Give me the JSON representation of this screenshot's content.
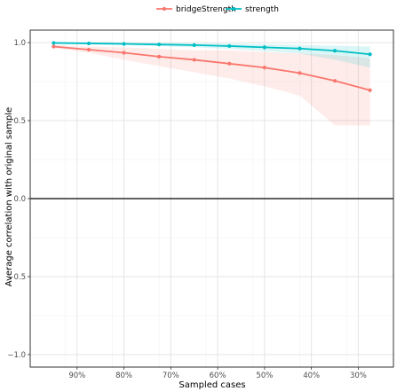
{
  "chart_data": {
    "type": "line",
    "xlabel": "Sampled cases",
    "ylabel": "Average correlation with original sample",
    "x_tick_labels": [
      "90%",
      "80%",
      "70%",
      "60%",
      "50%",
      "40%",
      "30%"
    ],
    "y_tick_labels": [
      "1.0",
      "0.5",
      "0.0",
      "−0.5",
      "−1.0"
    ],
    "ylim": [
      -1.0,
      1.0
    ],
    "grid": true,
    "legend_position": "top",
    "reference_line_y": 0,
    "x": [
      95,
      87.5,
      80,
      72.5,
      65,
      57.5,
      50,
      42.5,
      35,
      27.5
    ],
    "series": [
      {
        "name": "bridgeStrength",
        "color": "#F8766D",
        "values": [
          0.975,
          0.955,
          0.935,
          0.91,
          0.89,
          0.865,
          0.84,
          0.805,
          0.755,
          0.695
        ],
        "band_low": [
          0.965,
          0.935,
          0.89,
          0.85,
          0.81,
          0.77,
          0.72,
          0.66,
          0.47,
          0.47
        ],
        "band_high": [
          0.985,
          0.975,
          0.97,
          0.96,
          0.95,
          0.95,
          0.94,
          0.93,
          0.92,
          0.9
        ]
      },
      {
        "name": "strength",
        "color": "#00BFC4",
        "values": [
          0.998,
          0.995,
          0.992,
          0.988,
          0.984,
          0.978,
          0.97,
          0.962,
          0.948,
          0.925
        ],
        "band_low": [
          0.995,
          0.99,
          0.985,
          0.978,
          0.97,
          0.96,
          0.945,
          0.93,
          0.89,
          0.84
        ],
        "band_high": [
          1.0,
          1.0,
          0.998,
          0.997,
          0.996,
          0.994,
          0.99,
          0.985,
          0.98,
          0.975
        ]
      }
    ]
  }
}
